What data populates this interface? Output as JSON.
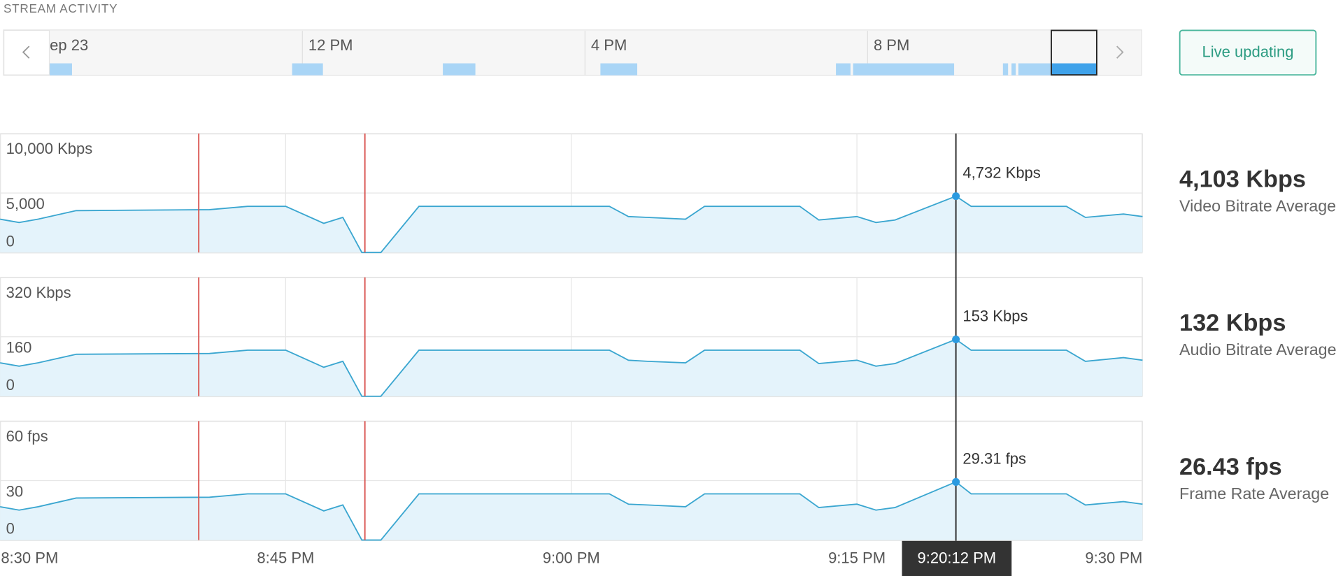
{
  "header": {
    "title": "STREAM ACTIVITY"
  },
  "timeline": {
    "labels": [
      "ep 23",
      "12 PM",
      "4 PM",
      "8 PM"
    ]
  },
  "live_button": {
    "label": "Live updating"
  },
  "chart_data": [
    {
      "type": "line",
      "x": [
        "8:30 PM",
        "8:31 PM",
        "8:32 PM",
        "8:34 PM",
        "8:41 PM",
        "8:43 PM",
        "8:45 PM",
        "8:47 PM",
        "8:48 PM",
        "8:49 PM",
        "8:50 PM",
        "8:52 PM",
        "9:02 PM",
        "9:03 PM",
        "9:04 PM",
        "9:06 PM",
        "9:07 PM",
        "9:12 PM",
        "9:13 PM",
        "9:15 PM",
        "9:16 PM",
        "9:17 PM",
        "9:20:12 PM",
        "9:21 PM",
        "9:26 PM",
        "9:27 PM",
        "9:29 PM",
        "9:30 PM"
      ],
      "xlim": [
        "8:30 PM",
        "9:30 PM"
      ],
      "xticks": [
        "8:30 PM",
        "8:45 PM",
        "9:00 PM",
        "9:15 PM",
        "9:30 PM"
      ],
      "ylim": [
        0,
        10000
      ],
      "yticks": [
        0,
        {
          "value": 5000,
          "label": "5,000"
        },
        {
          "value": 10000,
          "label": "10,000 Kbps"
        }
      ],
      "grid": true,
      "series": [
        {
          "color": "#3aa6d0",
          "values": [
            2800,
            2520,
            2800,
            3520,
            3600,
            3880,
            3880,
            2450,
            2950,
            0,
            0,
            3880,
            3880,
            3020,
            2950,
            2800,
            3880,
            3880,
            2730,
            3020,
            2520,
            2730,
            4732,
            3880,
            3880,
            2950,
            3230,
            3020
          ],
          "value_labels": [
            null,
            null,
            null,
            null,
            null,
            null,
            null,
            null,
            null,
            null,
            null,
            null,
            null,
            null,
            null,
            null,
            null,
            null,
            null,
            null,
            null,
            null,
            "4,732 Kbps",
            null,
            null,
            null,
            null,
            null
          ]
        }
      ],
      "summary": {
        "value": "4,103 Kbps",
        "label": "Video Bitrate Average"
      }
    },
    {
      "type": "line",
      "x": [
        "8:30 PM",
        "8:31 PM",
        "8:32 PM",
        "8:34 PM",
        "8:41 PM",
        "8:43 PM",
        "8:45 PM",
        "8:47 PM",
        "8:48 PM",
        "8:49 PM",
        "8:50 PM",
        "8:52 PM",
        "9:02 PM",
        "9:03 PM",
        "9:04 PM",
        "9:06 PM",
        "9:07 PM",
        "9:12 PM",
        "9:13 PM",
        "9:15 PM",
        "9:16 PM",
        "9:17 PM",
        "9:20:12 PM",
        "9:21 PM",
        "9:26 PM",
        "9:27 PM",
        "9:29 PM",
        "9:30 PM"
      ],
      "xlim": [
        "8:30 PM",
        "9:30 PM"
      ],
      "xticks": [
        "8:30 PM",
        "8:45 PM",
        "9:00 PM",
        "9:15 PM",
        "9:30 PM"
      ],
      "ylim": [
        0,
        320
      ],
      "yticks": [
        0,
        160,
        {
          "value": 320,
          "label": "320 Kbps"
        }
      ],
      "grid": true,
      "series": [
        {
          "color": "#3aa6d0",
          "values": [
            90,
            81,
            90,
            113,
            115,
            124,
            124,
            78,
            94,
            0,
            0,
            124,
            124,
            97,
            94,
            90,
            124,
            124,
            88,
            97,
            81,
            88,
            153,
            124,
            124,
            94,
            104,
            97
          ],
          "value_labels": [
            null,
            null,
            null,
            null,
            null,
            null,
            null,
            null,
            null,
            null,
            null,
            null,
            null,
            null,
            null,
            null,
            null,
            null,
            null,
            null,
            null,
            null,
            "153 Kbps",
            null,
            null,
            null,
            null,
            null
          ]
        }
      ],
      "summary": {
        "value": "132 Kbps",
        "label": "Audio Bitrate Average"
      }
    },
    {
      "type": "line",
      "x": [
        "8:30 PM",
        "8:31 PM",
        "8:32 PM",
        "8:34 PM",
        "8:41 PM",
        "8:43 PM",
        "8:45 PM",
        "8:47 PM",
        "8:48 PM",
        "8:49 PM",
        "8:50 PM",
        "8:52 PM",
        "9:02 PM",
        "9:03 PM",
        "9:04 PM",
        "9:06 PM",
        "9:07 PM",
        "9:12 PM",
        "9:13 PM",
        "9:15 PM",
        "9:16 PM",
        "9:17 PM",
        "9:20:12 PM",
        "9:21 PM",
        "9:26 PM",
        "9:27 PM",
        "9:29 PM",
        "9:30 PM"
      ],
      "xlim": [
        "8:30 PM",
        "9:30 PM"
      ],
      "xticks": [
        "8:30 PM",
        "8:45 PM",
        "9:00 PM",
        "9:15 PM",
        "9:30 PM"
      ],
      "ylim": [
        0,
        60
      ],
      "yticks": [
        0,
        30,
        {
          "value": 60,
          "label": "60 fps"
        }
      ],
      "grid": true,
      "series": [
        {
          "color": "#3aa6d0",
          "values": [
            16.8,
            15.1,
            16.8,
            21.2,
            21.6,
            23.3,
            23.3,
            14.7,
            17.7,
            0,
            0,
            23.3,
            23.3,
            18.1,
            17.7,
            16.8,
            23.3,
            23.3,
            16.4,
            18.1,
            15.1,
            16.4,
            29.31,
            23.3,
            23.3,
            17.7,
            19.4,
            18.1
          ],
          "value_labels": [
            null,
            null,
            null,
            null,
            null,
            null,
            null,
            null,
            null,
            null,
            null,
            null,
            null,
            null,
            null,
            null,
            null,
            null,
            null,
            null,
            null,
            null,
            "29.31 fps",
            null,
            null,
            null,
            null,
            null
          ]
        }
      ],
      "summary": {
        "value": "26.43 fps",
        "label": "Frame Rate Average"
      }
    }
  ]
}
